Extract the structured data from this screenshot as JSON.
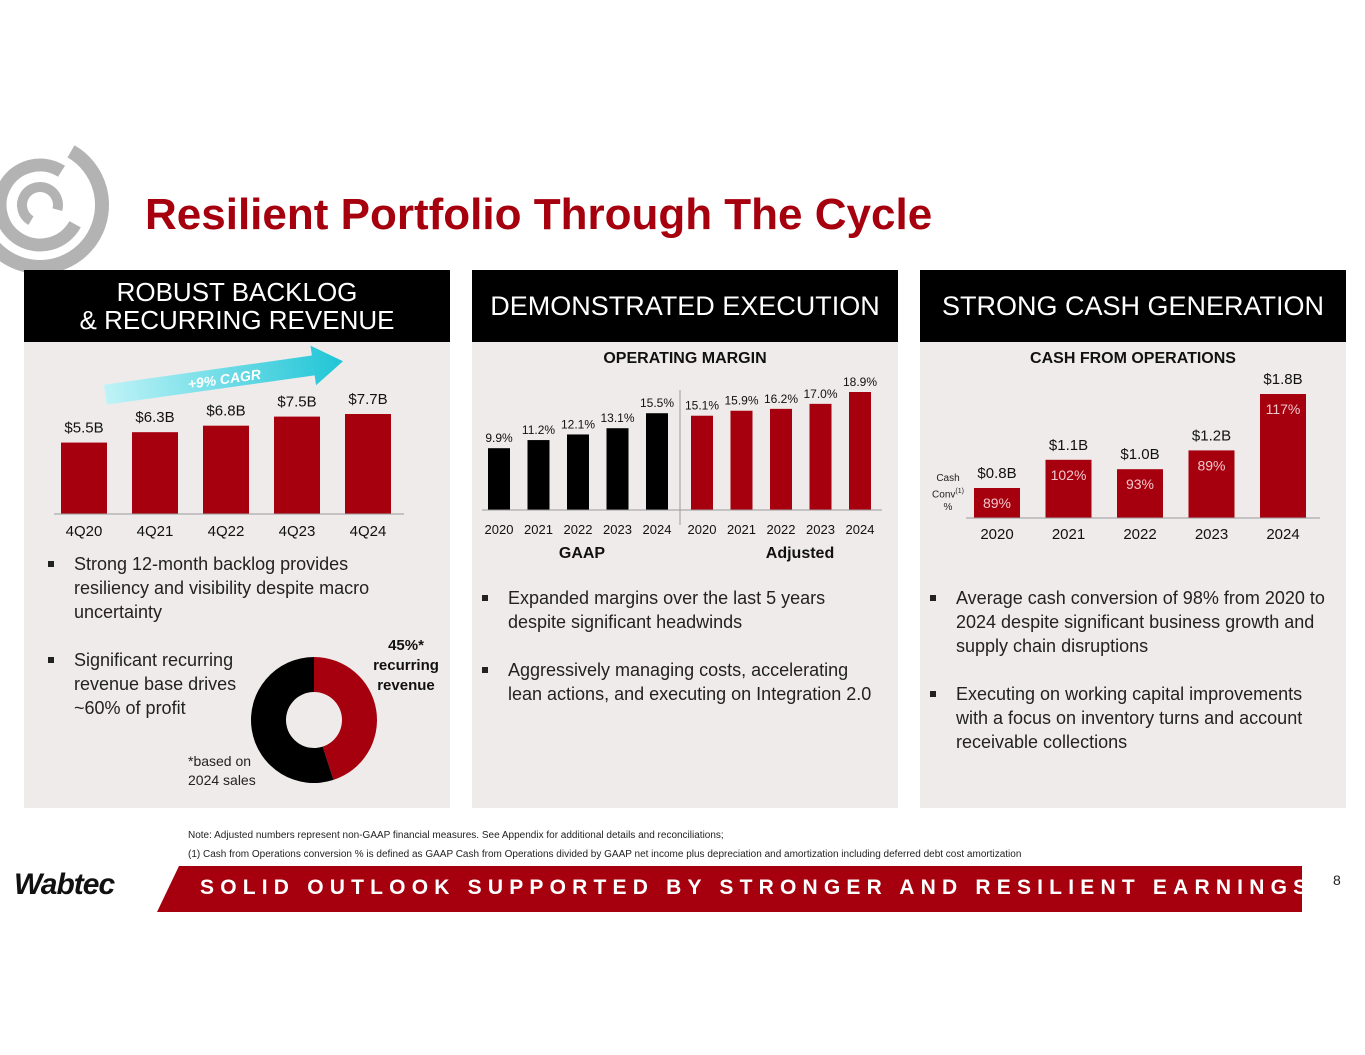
{
  "title": "Resilient Portfolio Through The Cycle",
  "colors": {
    "accent": "#a6000e",
    "bar_red": "#a6000e",
    "bar_black": "#000000",
    "panel_bg": "#efebea",
    "cagr_arrow": "#1fc5d6"
  },
  "panels": {
    "backlog": {
      "header_line1": "ROBUST BACKLOG",
      "header_line2": "& RECURRING REVENUE",
      "cagr_label": "+9% CAGR",
      "bullets": [
        "Strong 12-month backlog provides resiliency and visibility despite macro uncertainty",
        "Significant recurring revenue base drives ~60% of profit"
      ],
      "donut_label": "45%* recurring revenue",
      "donut_note": "*based on 2024 sales"
    },
    "execution": {
      "header": "DEMONSTRATED EXECUTION",
      "chart_title": "OPERATING MARGIN",
      "group_gaap": "GAAP",
      "group_adjusted": "Adjusted",
      "bullets": [
        "Expanded margins over the last 5 years despite significant headwinds",
        "Aggressively managing costs, accelerating lean actions, and executing on Integration 2.0"
      ]
    },
    "cash": {
      "header": "STRONG CASH GENERATION",
      "chart_title": "CASH FROM OPERATIONS",
      "row_label_1": "Cash",
      "row_label_2": "Conv",
      "row_label_sup": "(1)",
      "row_label_3": "%",
      "bullets": [
        "Average cash conversion of 98% from 2020 to 2024 despite significant business growth and supply chain disruptions",
        "Executing on working capital improvements with a focus on inventory turns and account receivable collections"
      ]
    }
  },
  "chart_data": [
    {
      "type": "bar",
      "categories": [
        "4Q20",
        "4Q21",
        "4Q22",
        "4Q23",
        "4Q24"
      ],
      "values": [
        5.5,
        6.3,
        6.8,
        7.5,
        7.7
      ],
      "labels": [
        "$5.5B",
        "$6.3B",
        "$6.8B",
        "$7.5B",
        "$7.7B"
      ],
      "ylim": [
        0,
        8
      ]
    },
    {
      "type": "bar",
      "title": "OPERATING MARGIN",
      "categories": [
        "2020",
        "2021",
        "2022",
        "2023",
        "2024"
      ],
      "series": [
        {
          "name": "GAAP",
          "values": [
            9.9,
            11.2,
            12.1,
            13.1,
            15.5
          ],
          "labels": [
            "9.9%",
            "11.2%",
            "12.1%",
            "13.1%",
            "15.5%"
          ]
        },
        {
          "name": "Adjusted",
          "values": [
            15.1,
            15.9,
            16.2,
            17.0,
            18.9
          ],
          "labels": [
            "15.1%",
            "15.9%",
            "16.2%",
            "17.0%",
            "18.9%"
          ]
        }
      ],
      "ylim": [
        0,
        19
      ]
    },
    {
      "type": "bar",
      "title": "CASH FROM OPERATIONS",
      "categories": [
        "2020",
        "2021",
        "2022",
        "2023",
        "2024"
      ],
      "values": [
        0.8,
        1.1,
        1.0,
        1.2,
        1.8
      ],
      "labels": [
        "$0.8B",
        "$1.1B",
        "$1.0B",
        "$1.2B",
        "$1.8B"
      ],
      "conversion": [
        "89%",
        "102%",
        "93%",
        "89%",
        "117%"
      ],
      "ylim": [
        0,
        1.8
      ]
    },
    {
      "type": "pie",
      "categories": [
        "recurring revenue",
        "other"
      ],
      "values": [
        45,
        55
      ]
    }
  ],
  "notes": {
    "line1": "Note:  Adjusted numbers represent non-GAAP financial measures.  See Appendix for additional details and reconciliations;",
    "line2": "(1) Cash from Operations conversion % is defined as GAAP Cash from Operations divided by GAAP net income plus depreciation and amortization including deferred debt cost amortization"
  },
  "footer": {
    "brand": "Wabtec",
    "tagline": "SOLID OUTLOOK SUPPORTED BY STRONGER AND RESILIENT EARNINGS",
    "page_number": "8"
  }
}
